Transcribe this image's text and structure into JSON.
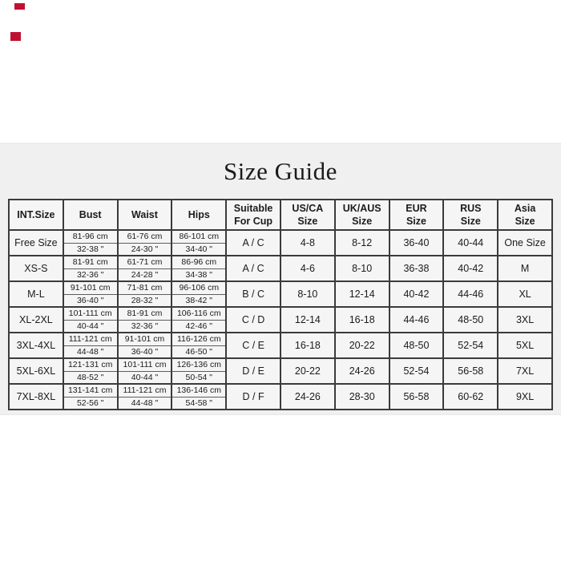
{
  "decor": {
    "marks": [
      {
        "name": "red-mark-top",
        "color": "#c01031"
      },
      {
        "name": "red-mark-bottom",
        "color": "#c01031"
      }
    ]
  },
  "panel": {
    "background": "#eff0ef",
    "title": "Size Guide"
  },
  "table": {
    "headers": {
      "int": "INT.Size",
      "bust": "Bust",
      "waist": "Waist",
      "hips": "Hips",
      "cup": "Suitable\nFor Cup",
      "us": "US/CA\nSize",
      "uk": "UK/AUS\nSize",
      "eur": "EUR\nSize",
      "rus": "RUS\nSize",
      "asia": "Asia\nSize"
    },
    "rows": [
      {
        "int": "Free Size",
        "bust_cm": "81-96 cm",
        "bust_in": "32-38 \"",
        "waist_cm": "61-76 cm",
        "waist_in": "24-30 \"",
        "hips_cm": "86-101 cm",
        "hips_in": "34-40 \"",
        "cup": "A / C",
        "us": "4-8",
        "uk": "8-12",
        "eur": "36-40",
        "rus": "40-44",
        "asia": "One Size"
      },
      {
        "int": "XS-S",
        "bust_cm": "81-91 cm",
        "bust_in": "32-36 \"",
        "waist_cm": "61-71 cm",
        "waist_in": "24-28 \"",
        "hips_cm": "86-96 cm",
        "hips_in": "34-38 \"",
        "cup": "A / C",
        "us": "4-6",
        "uk": "8-10",
        "eur": "36-38",
        "rus": "40-42",
        "asia": "M"
      },
      {
        "int": "M-L",
        "bust_cm": "91-101 cm",
        "bust_in": "36-40 \"",
        "waist_cm": "71-81 cm",
        "waist_in": "28-32 \"",
        "hips_cm": "96-106 cm",
        "hips_in": "38-42 \"",
        "cup": "B / C",
        "us": "8-10",
        "uk": "12-14",
        "eur": "40-42",
        "rus": "44-46",
        "asia": "XL"
      },
      {
        "int": "XL-2XL",
        "bust_cm": "101-111 cm",
        "bust_in": "40-44 \"",
        "waist_cm": "81-91 cm",
        "waist_in": "32-36 \"",
        "hips_cm": "106-116 cm",
        "hips_in": "42-46 \"",
        "cup": "C / D",
        "us": "12-14",
        "uk": "16-18",
        "eur": "44-46",
        "rus": "48-50",
        "asia": "3XL"
      },
      {
        "int": "3XL-4XL",
        "bust_cm": "111-121 cm",
        "bust_in": "44-48 \"",
        "waist_cm": "91-101 cm",
        "waist_in": "36-40 \"",
        "hips_cm": "116-126 cm",
        "hips_in": "46-50 \"",
        "cup": "C / E",
        "us": "16-18",
        "uk": "20-22",
        "eur": "48-50",
        "rus": "52-54",
        "asia": "5XL"
      },
      {
        "int": "5XL-6XL",
        "bust_cm": "121-131 cm",
        "bust_in": "48-52 \"",
        "waist_cm": "101-111 cm",
        "waist_in": "40-44 \"",
        "hips_cm": "126-136 cm",
        "hips_in": "50-54 \"",
        "cup": "D / E",
        "us": "20-22",
        "uk": "24-26",
        "eur": "52-54",
        "rus": "56-58",
        "asia": "7XL"
      },
      {
        "int": "7XL-8XL",
        "bust_cm": "131-141 cm",
        "bust_in": "52-56 \"",
        "waist_cm": "111-121 cm",
        "waist_in": "44-48 \"",
        "hips_cm": "136-146 cm",
        "hips_in": "54-58 \"",
        "cup": "D / F",
        "us": "24-26",
        "uk": "28-30",
        "eur": "56-58",
        "rus": "60-62",
        "asia": "9XL"
      }
    ]
  }
}
